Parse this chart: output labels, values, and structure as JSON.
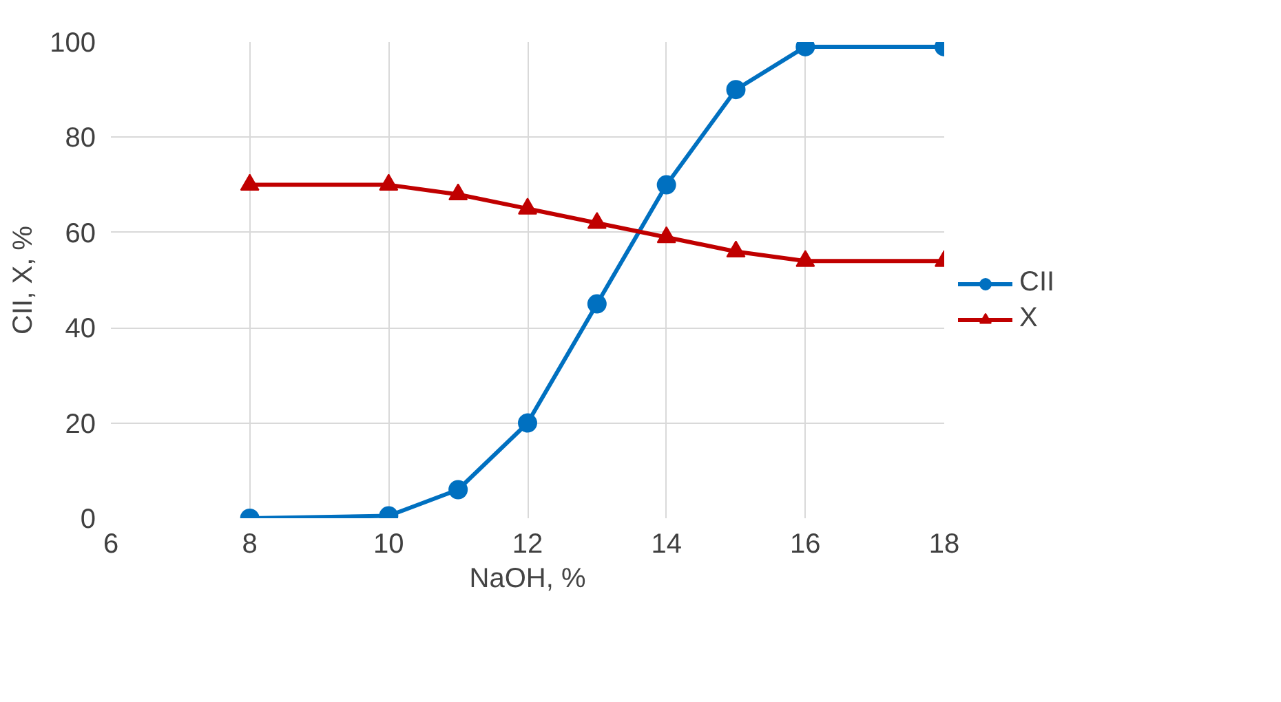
{
  "chart_data": {
    "type": "line",
    "xlabel": "NaOH, %",
    "ylabel": "CII, X, %",
    "x": [
      8,
      10,
      11,
      12,
      13,
      14,
      15,
      16,
      18
    ],
    "series": [
      {
        "name": "CII",
        "color": "#0070c0",
        "marker": "circle",
        "values": [
          0,
          0.5,
          6,
          20,
          45,
          70,
          90,
          99,
          99
        ]
      },
      {
        "name": "X",
        "color": "#c00000",
        "marker": "triangle",
        "values": [
          70,
          70,
          68,
          65,
          62,
          59,
          56,
          54,
          54
        ]
      }
    ],
    "xlim": [
      6,
      18
    ],
    "xticks": [
      6,
      8,
      10,
      12,
      14,
      16,
      18
    ],
    "ylim": [
      0,
      100
    ],
    "yticks": [
      0,
      20,
      40,
      60,
      80,
      100
    ],
    "grid": true,
    "legend": "right"
  }
}
